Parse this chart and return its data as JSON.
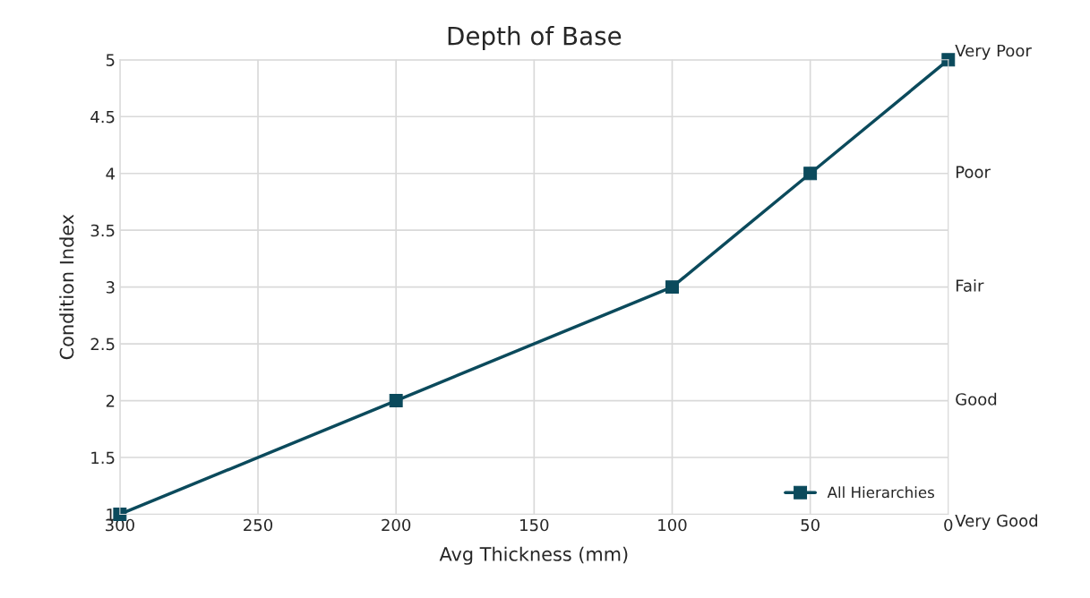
{
  "chart_data": {
    "type": "line",
    "title": "Depth of Base",
    "xlabel": "Avg Thickness (mm)",
    "ylabel": "Condition Index",
    "x": [
      300,
      200,
      100,
      50,
      0
    ],
    "series": [
      {
        "name": "All Hierarchies",
        "color": "#0b4a5c",
        "values": [
          1,
          2,
          3,
          4,
          5
        ]
      }
    ],
    "xlim": [
      300,
      0
    ],
    "xticks": [
      300,
      250,
      200,
      150,
      100,
      50,
      0
    ],
    "ylim": [
      1,
      5
    ],
    "yticks": [
      1,
      1.5,
      2,
      2.5,
      3,
      3.5,
      4,
      4.5,
      5
    ],
    "annotations": [
      "Very Poor",
      "Poor",
      "Fair",
      "Good",
      "Very Good"
    ],
    "grid": true,
    "legend": "bottom right",
    "marker": "square",
    "line_style": "solid"
  }
}
